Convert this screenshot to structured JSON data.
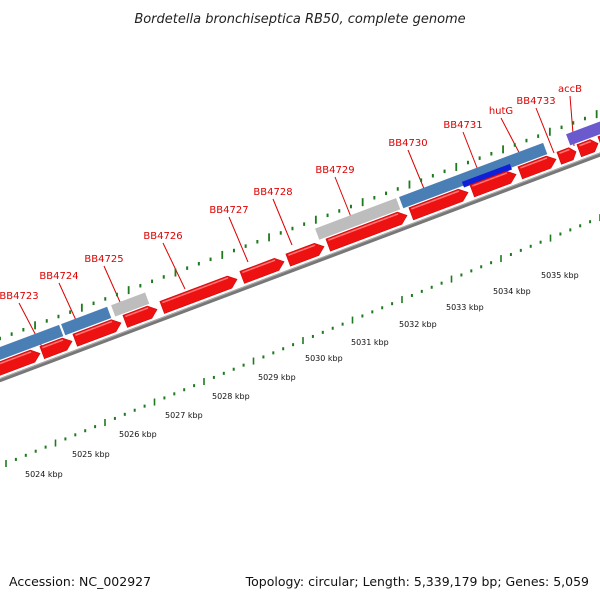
{
  "title": "Bordetella bronchiseptica RB50, complete genome",
  "footer": {
    "accession": "Accession: NC_002927",
    "summary": "Topology: circular; Length: 5,339,179 bp; Genes: 5,059"
  },
  "colors": {
    "gene_label": "#dd0000",
    "cds": "#ee1111",
    "cds_highlight": "#ff7777",
    "gene_blue": "#4a7fb5",
    "gene_grey": "#bdbdbd",
    "gene_dark_blue": "#1020d8",
    "gene_purple": "#6a5acd",
    "backbone": "#777777",
    "ticks": "#1e7a1e"
  },
  "gene_labels": [
    {
      "name": "BB4723"
    },
    {
      "name": "BB4724"
    },
    {
      "name": "BB4725"
    },
    {
      "name": "BB4726"
    },
    {
      "name": "BB4727"
    },
    {
      "name": "BB4728"
    },
    {
      "name": "BB4729"
    },
    {
      "name": "BB4730"
    },
    {
      "name": "BB4731"
    },
    {
      "name": "hutG"
    },
    {
      "name": "BB4733"
    },
    {
      "name": "accB"
    }
  ],
  "kbp_labels": [
    "5024 kbp",
    "5025 kbp",
    "5026 kbp",
    "5027 kbp",
    "5028 kbp",
    "5029 kbp",
    "5030 kbp",
    "5031 kbp",
    "5032 kbp",
    "5033 kbp",
    "5034 kbp",
    "5035 kbp"
  ]
}
